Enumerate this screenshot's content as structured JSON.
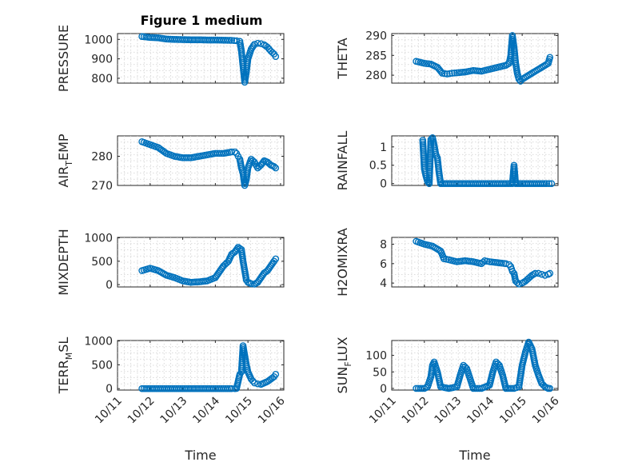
{
  "figure_title": "Figure 1 medium",
  "xlabel": "Time",
  "chart_data": [
    {
      "type": "scatter",
      "ylabel": "PRESSURE",
      "ylabel_main": "PRESSURE",
      "ylabel_sub": "",
      "ylabel_tail": "",
      "ylim": [
        775,
        1030
      ],
      "yticks": [
        800,
        900,
        1000
      ],
      "ytick_labels": [
        "800",
        "900",
        "1000"
      ],
      "x": [
        11.75,
        12.0,
        12.25,
        12.5,
        12.75,
        13.0,
        13.25,
        13.5,
        13.75,
        14.0,
        14.25,
        14.5,
        14.65,
        14.75,
        14.8,
        14.85,
        14.9,
        14.95,
        15.0,
        15.1,
        15.2,
        15.3,
        15.4,
        15.5,
        15.6,
        15.7,
        15.8,
        15.85
      ],
      "y": [
        1015,
        1010,
        1008,
        1002,
        1000,
        999,
        998,
        998,
        997,
        997,
        996,
        995,
        993,
        990,
        940,
        860,
        780,
        830,
        900,
        950,
        975,
        980,
        978,
        972,
        960,
        940,
        925,
        912
      ]
    },
    {
      "type": "scatter",
      "ylabel": "THETA",
      "ylabel_main": "THETA",
      "ylabel_sub": "",
      "ylabel_tail": "",
      "ylim": [
        278,
        290.5
      ],
      "yticks": [
        280,
        285,
        290
      ],
      "ytick_labels": [
        "280",
        "285",
        "290"
      ],
      "x": [
        11.75,
        12.0,
        12.2,
        12.4,
        12.55,
        12.7,
        12.85,
        13.0,
        13.25,
        13.5,
        13.75,
        14.0,
        14.25,
        14.5,
        14.6,
        14.65,
        14.7,
        14.75,
        14.8,
        14.85,
        14.9,
        14.95,
        15.0,
        15.1,
        15.2,
        15.3,
        15.4,
        15.5,
        15.6,
        15.7,
        15.8,
        15.85
      ],
      "y": [
        283.5,
        283.0,
        282.8,
        282.0,
        280.5,
        280.3,
        280.5,
        280.6,
        280.8,
        281.2,
        281.0,
        281.5,
        282.0,
        282.5,
        283.0,
        285.0,
        290.0,
        287.0,
        283.0,
        280.5,
        279.0,
        278.5,
        279.0,
        279.5,
        280.0,
        280.5,
        281.0,
        281.5,
        282.0,
        282.5,
        283.0,
        284.5
      ]
    },
    {
      "type": "scatter",
      "ylabel": "AIR_TEMP",
      "ylabel_main": "AIR",
      "ylabel_sub": "T",
      "ylabel_tail": "EMP",
      "ylim": [
        270,
        287
      ],
      "yticks": [
        270,
        280
      ],
      "ytick_labels": [
        "270",
        "280"
      ],
      "x": [
        11.75,
        12.0,
        12.25,
        12.5,
        12.75,
        13.0,
        13.25,
        13.5,
        13.75,
        14.0,
        14.25,
        14.5,
        14.6,
        14.65,
        14.7,
        14.75,
        14.8,
        14.85,
        14.9,
        14.95,
        15.0,
        15.1,
        15.2,
        15.3,
        15.4,
        15.5,
        15.6,
        15.7,
        15.8,
        15.85
      ],
      "y": [
        285,
        284,
        283,
        281,
        280,
        279.5,
        279.5,
        280,
        280.5,
        281,
        281,
        281.5,
        281.5,
        281,
        280,
        279,
        276,
        274,
        270,
        272,
        276,
        279,
        278,
        276,
        277,
        278.5,
        278,
        277,
        276.5,
        276
      ]
    },
    {
      "type": "scatter",
      "ylabel": "RAINFALL",
      "ylabel_main": "RAINFALL",
      "ylabel_sub": "",
      "ylabel_tail": "",
      "ylim": [
        -0.05,
        1.3
      ],
      "yticks": [
        0,
        0.5,
        1
      ],
      "ytick_labels": [
        "0",
        "0.5",
        "1"
      ],
      "x": [
        11.95,
        12.0,
        12.05,
        12.1,
        12.15,
        12.2,
        12.25,
        12.3,
        12.35,
        12.4,
        12.45,
        12.5,
        12.75,
        13.0,
        13.25,
        13.5,
        13.75,
        14.0,
        14.25,
        14.5,
        14.7,
        14.75,
        14.8,
        15.0,
        15.25,
        15.5,
        15.75,
        15.9
      ],
      "y": [
        1.18,
        0.4,
        0.2,
        0.05,
        0,
        1.2,
        1.25,
        1.05,
        0.8,
        0.7,
        0.3,
        0,
        0,
        0,
        0,
        0,
        0,
        0,
        0,
        0,
        0,
        0.5,
        0,
        0,
        0,
        0,
        0,
        0
      ]
    },
    {
      "type": "scatter",
      "ylabel": "MIXDEPTH",
      "ylabel_main": "MIXDEPTH",
      "ylabel_sub": "",
      "ylabel_tail": "",
      "ylim": [
        -50,
        1010
      ],
      "yticks": [
        0,
        500,
        1000
      ],
      "ytick_labels": [
        "0",
        "500",
        "1000"
      ],
      "x": [
        11.75,
        12.0,
        12.25,
        12.5,
        12.75,
        13.0,
        13.25,
        13.5,
        13.75,
        14.0,
        14.25,
        14.4,
        14.5,
        14.6,
        14.7,
        14.8,
        14.85,
        14.9,
        14.95,
        15.0,
        15.1,
        15.2,
        15.3,
        15.4,
        15.5,
        15.6,
        15.7,
        15.8,
        15.85
      ],
      "y": [
        300,
        350,
        300,
        200,
        150,
        80,
        50,
        60,
        80,
        150,
        400,
        500,
        650,
        700,
        800,
        750,
        500,
        300,
        100,
        50,
        20,
        10,
        50,
        150,
        250,
        300,
        400,
        500,
        550
      ]
    },
    {
      "type": "scatter",
      "ylabel": "H2OMIXRA",
      "ylabel_main": "H2OMIXRA",
      "ylabel_sub": "",
      "ylabel_tail": "",
      "ylim": [
        3.6,
        8.7
      ],
      "yticks": [
        4,
        6,
        8
      ],
      "ytick_labels": [
        "4",
        "6",
        "8"
      ],
      "x": [
        11.75,
        12.0,
        12.25,
        12.5,
        12.6,
        12.75,
        13.0,
        13.25,
        13.5,
        13.75,
        13.85,
        14.0,
        14.25,
        14.5,
        14.6,
        14.65,
        14.7,
        14.75,
        14.8,
        14.9,
        15.0,
        15.1,
        15.2,
        15.3,
        15.4,
        15.5,
        15.6,
        15.7,
        15.8,
        15.85
      ],
      "y": [
        8.3,
        8.0,
        7.8,
        7.3,
        6.5,
        6.4,
        6.2,
        6.3,
        6.2,
        6.0,
        6.3,
        6.2,
        6.1,
        6.0,
        5.9,
        5.7,
        5.2,
        5.0,
        4.2,
        3.9,
        4.0,
        4.2,
        4.5,
        4.8,
        5.0,
        5.0,
        4.9,
        4.8,
        4.9,
        5.0
      ]
    },
    {
      "type": "scatter",
      "ylabel": "TERR_MSL",
      "ylabel_main": "TERR",
      "ylabel_sub": "M",
      "ylabel_tail": "SL",
      "ylim": [
        -30,
        1010
      ],
      "yticks": [
        0,
        500,
        1000
      ],
      "ytick_labels": [
        "0",
        "500",
        "1000"
      ],
      "x": [
        11.75,
        12.0,
        12.25,
        12.5,
        12.75,
        13.0,
        13.25,
        13.5,
        13.75,
        14.0,
        14.25,
        14.5,
        14.6,
        14.65,
        14.75,
        14.8,
        14.85,
        14.9,
        14.95,
        15.0,
        15.1,
        15.2,
        15.3,
        15.4,
        15.5,
        15.6,
        15.7,
        15.8,
        15.85
      ],
      "y": [
        0,
        0,
        0,
        0,
        0,
        0,
        0,
        0,
        0,
        0,
        0,
        0,
        0,
        5,
        300,
        350,
        900,
        700,
        500,
        350,
        200,
        120,
        100,
        90,
        120,
        150,
        200,
        250,
        300
      ]
    },
    {
      "type": "scatter",
      "ylabel": "SUN_FLUX",
      "ylabel_main": "SUN",
      "ylabel_sub": "F",
      "ylabel_tail": "LUX",
      "ylim": [
        -5,
        145
      ],
      "yticks": [
        0,
        50,
        100
      ],
      "ytick_labels": [
        "0",
        "50",
        "100"
      ],
      "x": [
        11.75,
        12.0,
        12.1,
        12.2,
        12.25,
        12.3,
        12.4,
        12.5,
        12.75,
        13.0,
        13.1,
        13.2,
        13.3,
        13.4,
        13.5,
        13.75,
        14.0,
        14.1,
        14.2,
        14.3,
        14.4,
        14.5,
        14.75,
        14.9,
        15.0,
        15.1,
        15.2,
        15.3,
        15.4,
        15.5,
        15.6,
        15.7,
        15.8,
        15.85
      ],
      "y": [
        0,
        0,
        5,
        35,
        70,
        80,
        50,
        5,
        0,
        5,
        40,
        70,
        60,
        30,
        0,
        0,
        10,
        50,
        80,
        70,
        40,
        0,
        0,
        5,
        70,
        110,
        140,
        120,
        70,
        40,
        15,
        5,
        0,
        0
      ]
    }
  ],
  "xaxis": {
    "xlim": [
      11,
      16.1
    ],
    "xticks": [
      11,
      12,
      13,
      14,
      15,
      16
    ],
    "xtick_labels": [
      "10/11",
      "10/12",
      "10/13",
      "10/14",
      "10/15",
      "10/16"
    ]
  }
}
